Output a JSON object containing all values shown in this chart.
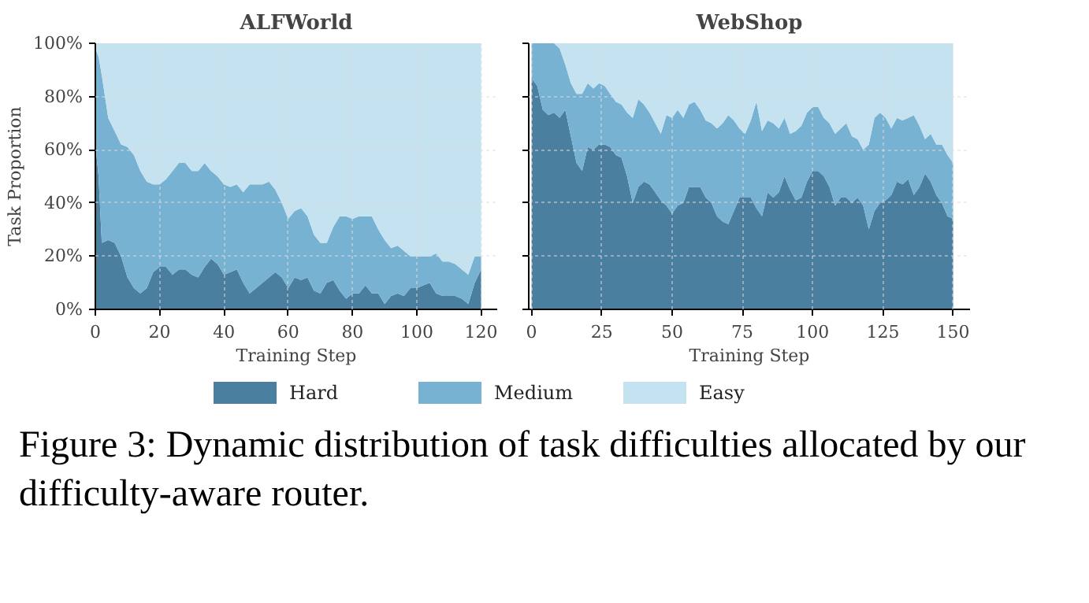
{
  "chart_data": [
    {
      "type": "area",
      "title": "ALFWorld",
      "xlabel": "Training Step",
      "ylabel": "Task Proportion",
      "stacked": true,
      "grid": true,
      "legend": "bottom",
      "x": [
        0,
        1,
        2,
        4,
        6,
        8,
        10,
        12,
        14,
        16,
        18,
        20,
        22,
        24,
        26,
        28,
        30,
        32,
        34,
        36,
        38,
        40,
        42,
        44,
        46,
        48,
        50,
        52,
        54,
        56,
        58,
        60,
        62,
        64,
        66,
        68,
        70,
        72,
        74,
        76,
        78,
        80,
        82,
        84,
        86,
        88,
        90,
        92,
        94,
        96,
        98,
        100,
        102,
        104,
        106,
        108,
        110,
        112,
        114,
        116,
        118,
        120
      ],
      "xlim": [
        0,
        125
      ],
      "xticks": [
        0,
        20,
        40,
        60,
        80,
        100,
        120
      ],
      "ylim": [
        0,
        100
      ],
      "yticks": [
        {
          "value": 0,
          "label": "0%"
        },
        {
          "value": 20,
          "label": "20%"
        },
        {
          "value": 40,
          "label": "40%"
        },
        {
          "value": 60,
          "label": "60%"
        },
        {
          "value": 80,
          "label": "80%"
        },
        {
          "value": 100,
          "label": "100%"
        }
      ],
      "series": [
        {
          "name": "Hard",
          "color": "#4a7fa0",
          "values": [
            62,
            50,
            25,
            26,
            25,
            20,
            12,
            8,
            6,
            8,
            14,
            16,
            16,
            13,
            15,
            15,
            13,
            12,
            16,
            19,
            17,
            13,
            14,
            15,
            10,
            6,
            8,
            10,
            12,
            14,
            12,
            8,
            12,
            11,
            12,
            7,
            6,
            10,
            11,
            7,
            4,
            6,
            6,
            9,
            6,
            6,
            2,
            5,
            6,
            5,
            8,
            8,
            9,
            10,
            6,
            5,
            5,
            5,
            4,
            2,
            10,
            15
          ]
        },
        {
          "name": "Medium",
          "color": "#78b2d2",
          "values": [
            36,
            45,
            63,
            46,
            42,
            42,
            49,
            50,
            46,
            40,
            33,
            31,
            33,
            39,
            40,
            40,
            39,
            40,
            39,
            33,
            33,
            34,
            32,
            32,
            34,
            41,
            39,
            37,
            36,
            31,
            28,
            26,
            25,
            27,
            23,
            21,
            19,
            15,
            20,
            28,
            31,
            28,
            29,
            26,
            29,
            24,
            24,
            18,
            18,
            17,
            12,
            12,
            11,
            10,
            15,
            13,
            13,
            12,
            11,
            11,
            10,
            5
          ]
        },
        {
          "name": "Easy",
          "color": "#c4e2f0",
          "values": [
            2,
            5,
            12,
            28,
            33,
            38,
            39,
            42,
            48,
            52,
            53,
            53,
            51,
            48,
            45,
            45,
            48,
            48,
            45,
            48,
            50,
            53,
            54,
            53,
            56,
            53,
            53,
            53,
            52,
            55,
            60,
            66,
            63,
            62,
            65,
            72,
            75,
            75,
            69,
            65,
            65,
            66,
            65,
            65,
            65,
            70,
            74,
            77,
            76,
            78,
            80,
            80,
            80,
            80,
            79,
            82,
            82,
            83,
            85,
            87,
            80,
            80
          ]
        }
      ],
      "annotations": [
        "Figure 3: Dynamic distribution of task difficulties allocated by our difficulty-aware router."
      ]
    },
    {
      "type": "area",
      "title": "WebShop",
      "xlabel": "Training Step",
      "stacked": true,
      "grid": true,
      "tick_labels": "x",
      "x": [
        0,
        2,
        4,
        6,
        8,
        10,
        12,
        14,
        16,
        18,
        20,
        22,
        24,
        26,
        28,
        30,
        32,
        34,
        36,
        38,
        40,
        42,
        44,
        46,
        48,
        50,
        52,
        54,
        56,
        58,
        60,
        62,
        64,
        66,
        68,
        70,
        72,
        74,
        76,
        78,
        80,
        82,
        84,
        86,
        88,
        90,
        92,
        94,
        96,
        98,
        100,
        102,
        104,
        106,
        108,
        110,
        112,
        114,
        116,
        118,
        120,
        122,
        124,
        126,
        128,
        130,
        132,
        134,
        136,
        138,
        140,
        142,
        144,
        146,
        148,
        150
      ],
      "xlim": [
        -1,
        156
      ],
      "xticks": [
        0,
        25,
        50,
        75,
        100,
        125,
        150
      ],
      "ylim": [
        0,
        100
      ],
      "yticks": [
        {
          "value": 0,
          "label": null
        },
        {
          "value": 20,
          "label": null
        },
        {
          "value": 40,
          "label": null
        },
        {
          "value": 60,
          "label": null
        },
        {
          "value": 80,
          "label": null
        },
        {
          "value": 100,
          "label": null
        }
      ],
      "series": [
        {
          "color": "#4a7fa0",
          "values": [
            87,
            84,
            75,
            73,
            74,
            72,
            75,
            65,
            55,
            52,
            61,
            60,
            62,
            62,
            61,
            58,
            57,
            50,
            40,
            46,
            48,
            47,
            44,
            41,
            39,
            36,
            39,
            40,
            46,
            46,
            46,
            42,
            40,
            35,
            33,
            32,
            37,
            42,
            42,
            42,
            38,
            35,
            44,
            42,
            44,
            50,
            45,
            41,
            42,
            48,
            52,
            52,
            50,
            46,
            39,
            42,
            42,
            40,
            42,
            39,
            30,
            37,
            40,
            41,
            43,
            48,
            47,
            49,
            43,
            46,
            51,
            48,
            43,
            40,
            35,
            34
          ]
        },
        {
          "color": "#78b2d2",
          "values": [
            13,
            16,
            25,
            27,
            26,
            26,
            17,
            20,
            26,
            29,
            24,
            23,
            23,
            22,
            20,
            20,
            20,
            24,
            32,
            33,
            29,
            27,
            26,
            25,
            34,
            36,
            36,
            32,
            31,
            32,
            29,
            29,
            30,
            33,
            37,
            41,
            34,
            26,
            24,
            29,
            40,
            32,
            27,
            28,
            24,
            22,
            21,
            26,
            27,
            26,
            24,
            24,
            22,
            24,
            27,
            26,
            28,
            25,
            22,
            21,
            32,
            35,
            34,
            31,
            25,
            24,
            24,
            23,
            30,
            23,
            13,
            18,
            19,
            22,
            23,
            21
          ]
        },
        {
          "color": "#c4e2f0",
          "values": [
            0,
            0,
            0,
            0,
            0,
            2,
            8,
            15,
            19,
            19,
            15,
            17,
            15,
            16,
            19,
            22,
            23,
            26,
            28,
            21,
            23,
            26,
            30,
            34,
            27,
            28,
            25,
            28,
            23,
            22,
            25,
            29,
            30,
            32,
            30,
            27,
            29,
            32,
            34,
            29,
            22,
            33,
            29,
            30,
            32,
            28,
            34,
            33,
            31,
            26,
            24,
            24,
            28,
            30,
            34,
            32,
            30,
            35,
            36,
            40,
            38,
            28,
            26,
            28,
            32,
            28,
            29,
            28,
            27,
            31,
            36,
            34,
            38,
            38,
            42,
            45
          ]
        }
      ]
    }
  ]
}
